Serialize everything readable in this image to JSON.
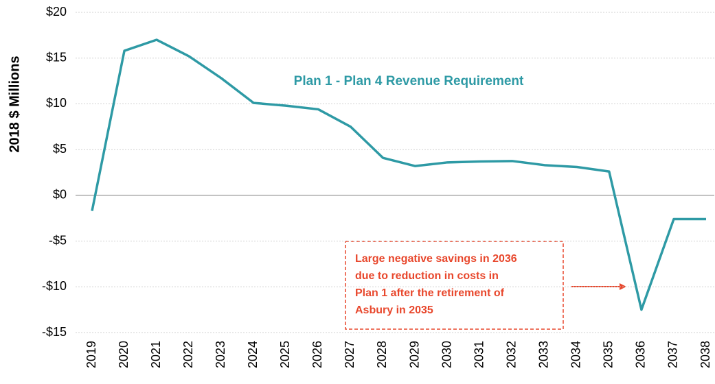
{
  "chart_data": {
    "type": "line",
    "series_label": "Plan 1 - Plan 4 Revenue Requirement",
    "y_label": "2018 $ Millions",
    "categories": [
      "2019",
      "2020",
      "2021",
      "2022",
      "2023",
      "2024",
      "2025",
      "2026",
      "2027",
      "2028",
      "2029",
      "2030",
      "2031",
      "2032",
      "2033",
      "2034",
      "2035",
      "2036",
      "2037",
      "2038"
    ],
    "series": [
      {
        "name": "Plan 1 - Plan 4 Revenue Requirement",
        "color": "#2e9aa5",
        "values": [
          -1.7,
          15.8,
          17.0,
          15.2,
          12.8,
          10.1,
          9.8,
          9.4,
          7.5,
          4.1,
          3.2,
          3.6,
          3.7,
          3.75,
          3.3,
          3.1,
          2.6,
          -12.5,
          -2.6,
          -2.6
        ]
      }
    ],
    "ylim": [
      -15,
      20
    ],
    "yticks": [
      {
        "value": -15,
        "label": "-$15"
      },
      {
        "value": -10,
        "label": "-$10"
      },
      {
        "value": -5,
        "label": "-$5"
      },
      {
        "value": 0,
        "label": "$0"
      },
      {
        "value": 5,
        "label": "$5"
      },
      {
        "value": 10,
        "label": "$10"
      },
      {
        "value": 15,
        "label": "$15"
      },
      {
        "value": 20,
        "label": "$20"
      }
    ],
    "grid": true,
    "annotation": {
      "lines": [
        "Large negative savings in 2036",
        "due to reduction in costs in",
        "Plan 1 after the retirement of",
        "Asbury in 2035"
      ],
      "color": "#e8472c"
    }
  }
}
